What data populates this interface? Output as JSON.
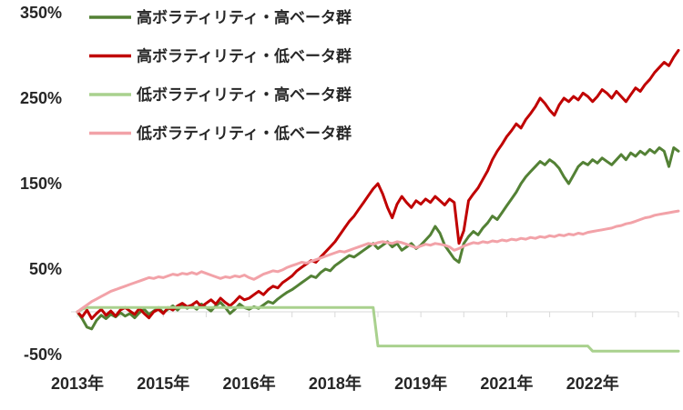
{
  "chart_data": {
    "type": "line",
    "title": "",
    "xlabel": "",
    "ylabel": "",
    "ylim": [
      -50,
      350
    ],
    "grid": "zero-line-only",
    "legend_position": "top-left",
    "colors": {
      "axis": "#d9d9d9",
      "text": "#262626",
      "background": "#ffffff"
    },
    "y_ticks": [
      {
        "label": "350%",
        "value": 350
      },
      {
        "label": "250%",
        "value": 250
      },
      {
        "label": "150%",
        "value": 150
      },
      {
        "label": "50%",
        "value": 50
      },
      {
        "label": "-50%",
        "value": -50
      }
    ],
    "x_ticks": [
      {
        "label": "2013年",
        "index": 0
      },
      {
        "label": "2015年",
        "index": 18
      },
      {
        "label": "2016年",
        "index": 36
      },
      {
        "label": "2018年",
        "index": 54
      },
      {
        "label": "2019年",
        "index": 72
      },
      {
        "label": "2021年",
        "index": 90
      },
      {
        "label": "2022年",
        "index": 108
      }
    ],
    "series": [
      {
        "name": "高ボラティリティ・高ベータ群",
        "color": "#538135",
        "values": [
          0,
          -8,
          -18,
          -20,
          -10,
          -4,
          -8,
          -3,
          -6,
          -1,
          -5,
          -2,
          -7,
          -1,
          3,
          -3,
          1,
          5,
          -1,
          3,
          7,
          2,
          8,
          4,
          7,
          3,
          9,
          5,
          1,
          7,
          11,
          5,
          -2,
          3,
          9,
          5,
          3,
          6,
          4,
          8,
          12,
          10,
          15,
          19,
          23,
          26,
          30,
          34,
          38,
          42,
          40,
          46,
          50,
          48,
          54,
          58,
          62,
          66,
          64,
          68,
          72,
          76,
          80,
          74,
          78,
          82,
          76,
          80,
          72,
          76,
          80,
          74,
          78,
          84,
          90,
          100,
          92,
          78,
          70,
          62,
          58,
          80,
          88,
          94,
          90,
          98,
          104,
          112,
          108,
          116,
          124,
          132,
          140,
          150,
          158,
          164,
          170,
          176,
          172,
          178,
          174,
          168,
          158,
          150,
          160,
          170,
          175,
          172,
          178,
          174,
          180,
          176,
          172,
          178,
          184,
          178,
          186,
          182,
          188,
          184,
          190,
          186,
          192,
          188,
          170,
          192,
          188
        ]
      },
      {
        "name": "高ボラティリティ・低ベータ群",
        "color": "#c00000",
        "values": [
          0,
          -6,
          2,
          -8,
          -2,
          3,
          -4,
          1,
          -5,
          2,
          5,
          1,
          -3,
          4,
          -2,
          -7,
          0,
          3,
          -2,
          5,
          2,
          7,
          10,
          6,
          8,
          12,
          6,
          10,
          14,
          9,
          16,
          11,
          7,
          12,
          18,
          14,
          16,
          20,
          24,
          20,
          26,
          30,
          28,
          34,
          38,
          42,
          48,
          52,
          56,
          60,
          58,
          64,
          70,
          76,
          82,
          90,
          98,
          106,
          112,
          120,
          128,
          136,
          144,
          150,
          138,
          122,
          110,
          126,
          135,
          128,
          122,
          130,
          126,
          132,
          128,
          135,
          130,
          125,
          132,
          128,
          80,
          95,
          130,
          138,
          145,
          155,
          165,
          178,
          188,
          196,
          205,
          212,
          220,
          215,
          225,
          232,
          240,
          250,
          244,
          236,
          230,
          242,
          250,
          246,
          252,
          248,
          256,
          252,
          246,
          252,
          260,
          256,
          250,
          258,
          252,
          246,
          254,
          262,
          258,
          266,
          272,
          280,
          286,
          292,
          288,
          298,
          306
        ]
      },
      {
        "name": "低ボラティリティ・高ベータ群",
        "color": "#a9d18e",
        "values": [
          0,
          3,
          5,
          5,
          5,
          5,
          5,
          5,
          5,
          5,
          5,
          5,
          5,
          5,
          5,
          5,
          5,
          5,
          5,
          5,
          5,
          5,
          5,
          5,
          5,
          5,
          5,
          5,
          5,
          5,
          5,
          5,
          5,
          5,
          5,
          5,
          5,
          5,
          5,
          5,
          5,
          5,
          5,
          5,
          5,
          5,
          5,
          5,
          5,
          5,
          5,
          5,
          5,
          5,
          5,
          5,
          5,
          5,
          5,
          5,
          5,
          5,
          5,
          -40,
          -40,
          -40,
          -40,
          -40,
          -40,
          -40,
          -40,
          -40,
          -40,
          -40,
          -40,
          -40,
          -40,
          -40,
          -40,
          -40,
          -40,
          -40,
          -40,
          -40,
          -40,
          -40,
          -40,
          -40,
          -40,
          -40,
          -40,
          -40,
          -40,
          -40,
          -40,
          -40,
          -40,
          -40,
          -40,
          -40,
          -40,
          -40,
          -40,
          -40,
          -40,
          -40,
          -40,
          -40,
          -46,
          -46,
          -46,
          -46,
          -46,
          -46,
          -46,
          -46,
          -46,
          -46,
          -46,
          -46,
          -46,
          -46,
          -46,
          -46,
          -46,
          -46,
          -46
        ]
      },
      {
        "name": "低ボラティリティ・低ベータ群",
        "color": "#f2a2a8",
        "values": [
          0,
          4,
          8,
          12,
          15,
          18,
          21,
          24,
          26,
          28,
          30,
          32,
          34,
          36,
          38,
          40,
          39,
          41,
          40,
          42,
          44,
          43,
          45,
          44,
          46,
          44,
          47,
          45,
          43,
          41,
          39,
          41,
          40,
          42,
          41,
          43,
          40,
          38,
          41,
          44,
          46,
          48,
          47,
          49,
          52,
          54,
          56,
          58,
          57,
          59,
          61,
          63,
          65,
          67,
          69,
          71,
          70,
          72,
          74,
          76,
          78,
          80,
          79,
          81,
          82,
          81,
          80,
          82,
          81,
          79,
          77,
          75,
          77,
          79,
          78,
          80,
          79,
          78,
          76,
          72,
          74,
          77,
          79,
          81,
          80,
          82,
          81,
          83,
          82,
          84,
          83,
          85,
          84,
          86,
          85,
          87,
          86,
          88,
          87,
          89,
          88,
          90,
          89,
          91,
          90,
          92,
          91,
          93,
          94,
          95,
          96,
          97,
          98,
          100,
          101,
          103,
          104,
          106,
          108,
          110,
          111,
          113,
          114,
          115,
          116,
          117,
          118
        ]
      }
    ]
  }
}
